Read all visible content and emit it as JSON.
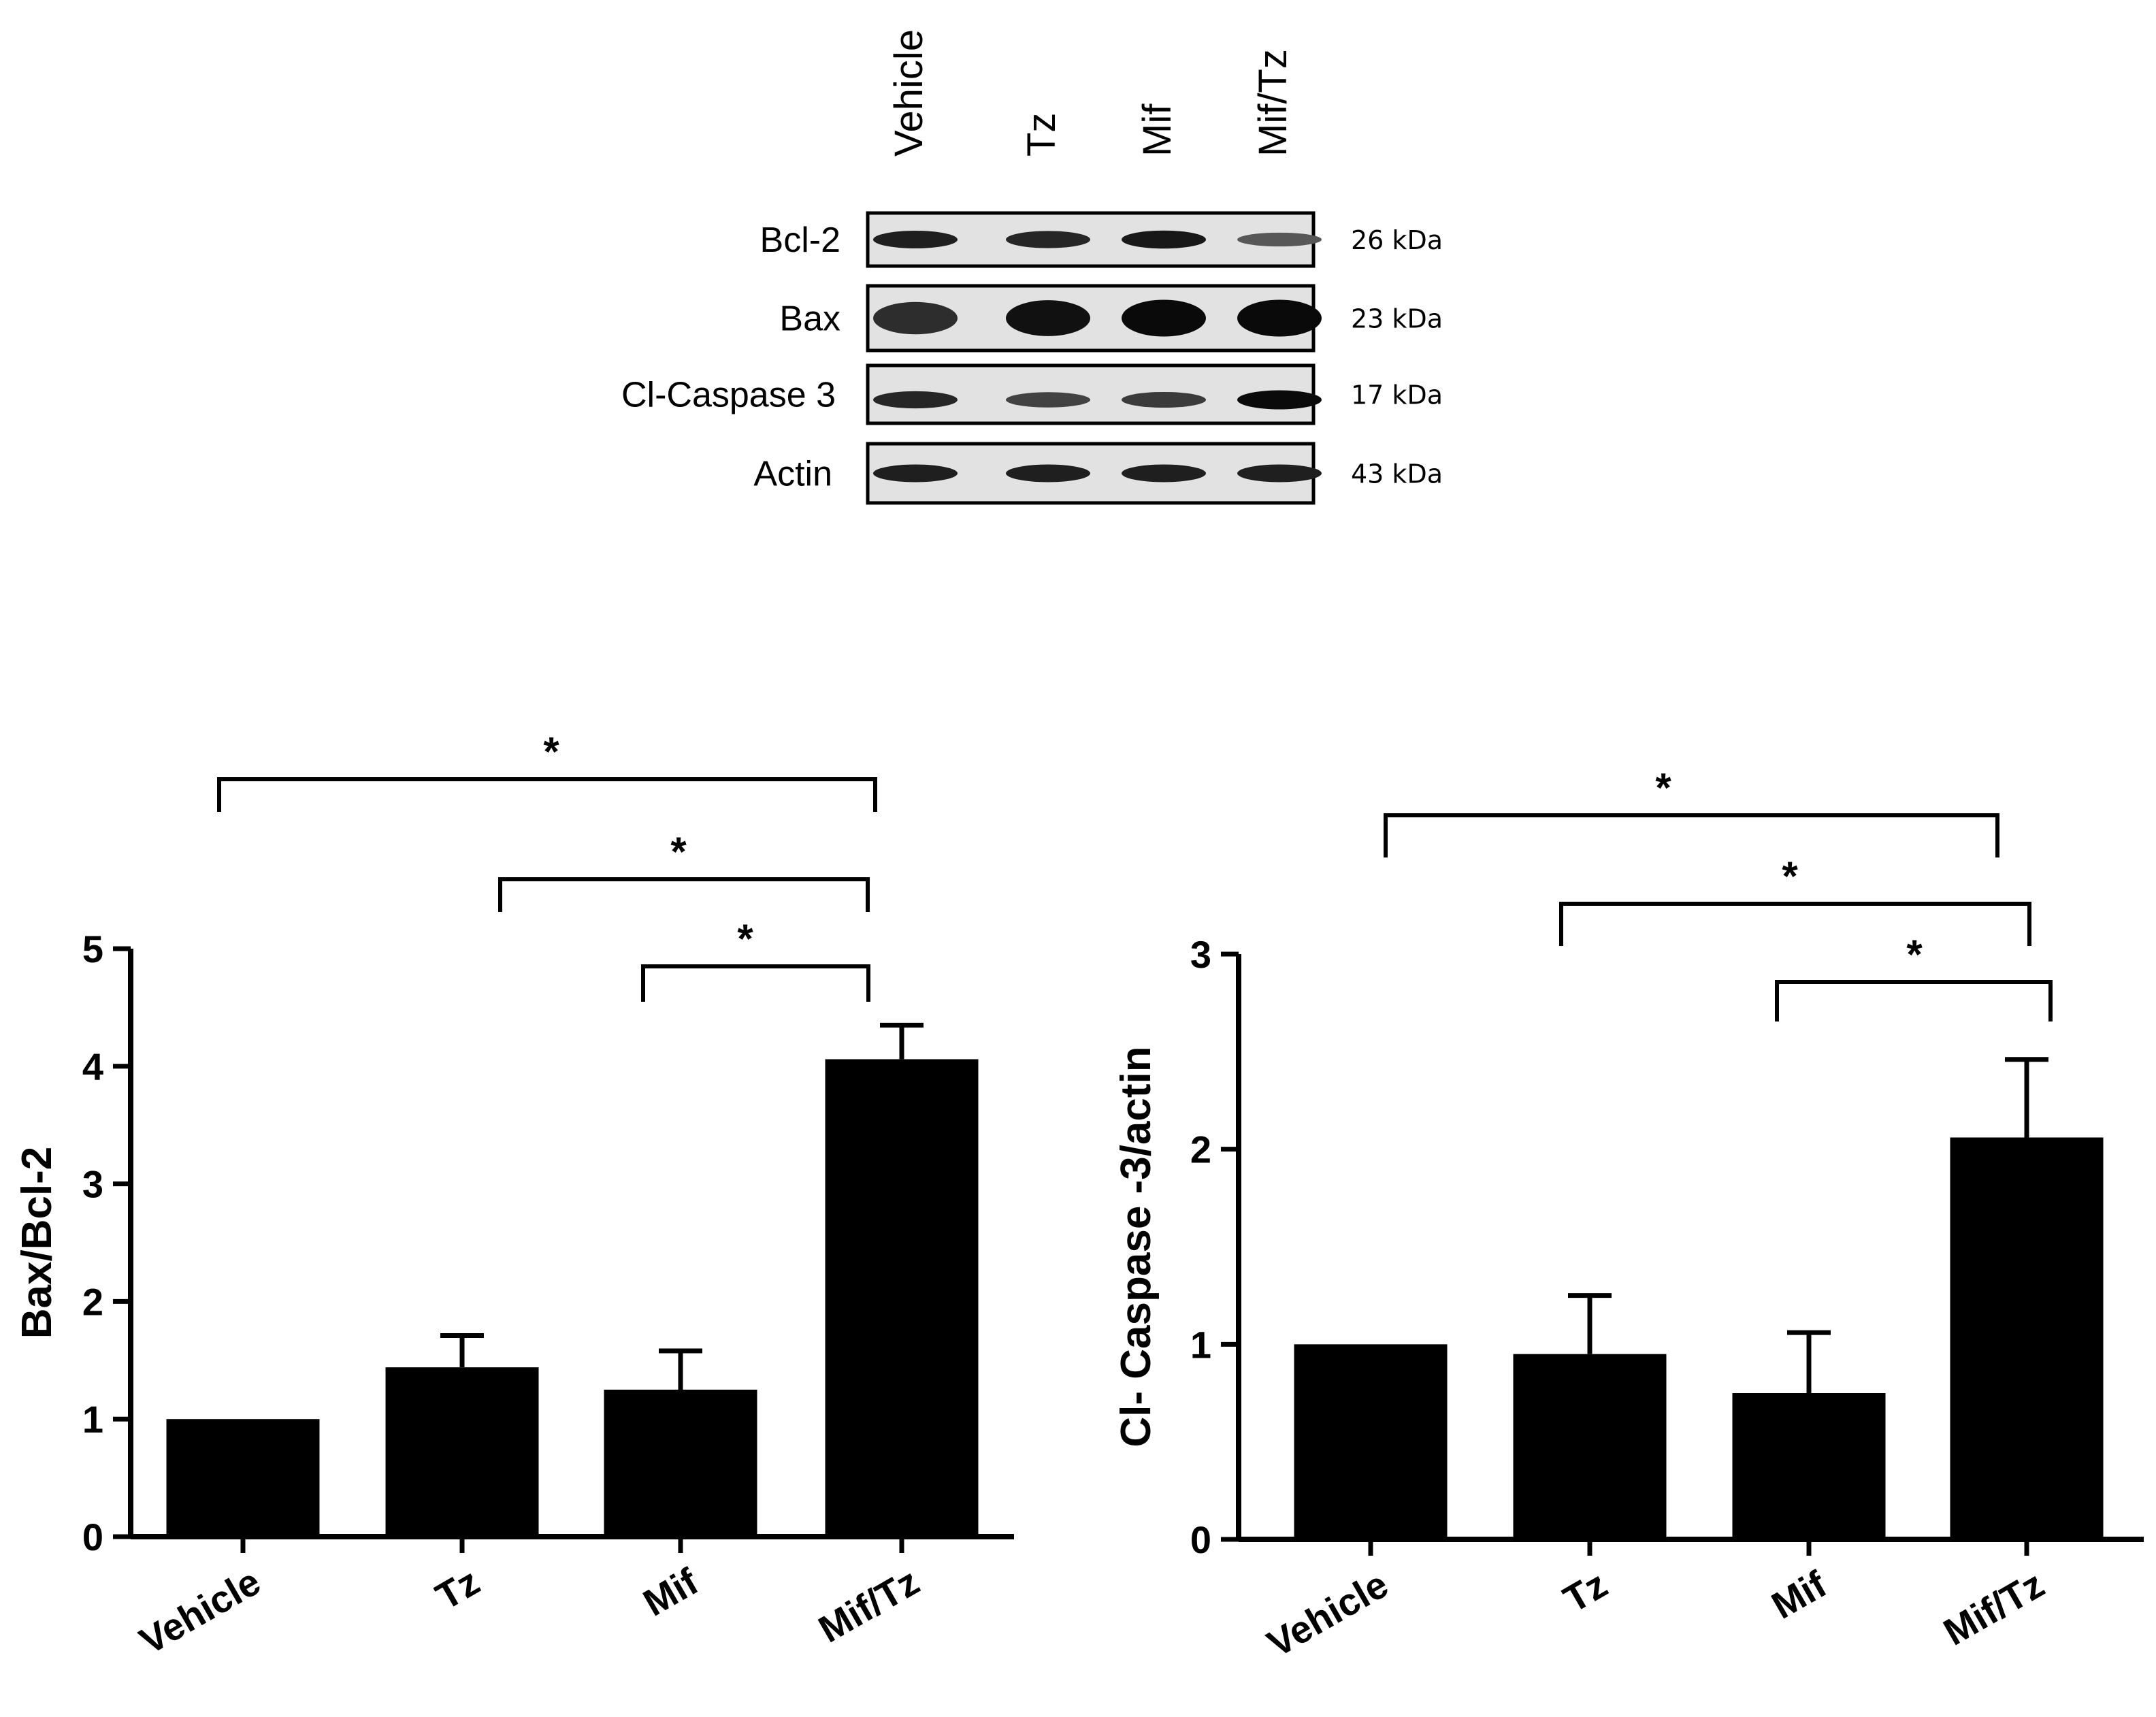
{
  "western_blot": {
    "lanes": [
      "Vehicle",
      "Tz",
      "Mif",
      "Mif/Tz"
    ],
    "rows": [
      {
        "protein": "Bcl-2",
        "kda": "26 kDa",
        "band_intensity": [
          0.85,
          0.8,
          0.9,
          0.45
        ]
      },
      {
        "protein": "Bax",
        "kda": "23 kDa",
        "band_intensity": [
          0.75,
          0.95,
          1.0,
          1.0
        ]
      },
      {
        "protein": "Cl-Caspase 3",
        "kda": "17 kDa",
        "band_intensity": [
          0.8,
          0.6,
          0.65,
          1.0
        ]
      },
      {
        "protein": "Actin",
        "kda": "43 kDa",
        "band_intensity": [
          0.85,
          0.85,
          0.85,
          0.85
        ]
      }
    ]
  },
  "chart_data": [
    {
      "type": "bar",
      "categories": [
        "Vehicle",
        "Tz",
        "Mif",
        "Mif/Tz"
      ],
      "values": [
        1.0,
        1.44,
        1.25,
        4.06
      ],
      "errors": [
        0,
        0.27,
        0.33,
        0.29
      ],
      "ylabel": "Bax/Bcl-2",
      "ylim": [
        0,
        5
      ],
      "yticks": [
        "0",
        "1",
        "2",
        "3",
        "4",
        "5"
      ],
      "significance": [
        {
          "from": "Vehicle",
          "to": "Mif/Tz",
          "label": "*"
        },
        {
          "from": "Tz",
          "to": "Mif/Tz",
          "label": "*"
        },
        {
          "from": "Mif",
          "to": "Mif/Tz",
          "label": "*"
        }
      ]
    },
    {
      "type": "bar",
      "categories": [
        "Vehicle",
        "Tz",
        "Mif",
        "Mif/Tz"
      ],
      "values": [
        1.0,
        0.95,
        0.75,
        2.06
      ],
      "errors": [
        0,
        0.3,
        0.31,
        0.4
      ],
      "ylabel": "Cl- Caspase -3/actin",
      "ylim": [
        0,
        3
      ],
      "yticks": [
        "0",
        "1",
        "2",
        "3"
      ],
      "significance": [
        {
          "from": "Vehicle",
          "to": "Mif/Tz",
          "label": "*"
        },
        {
          "from": "Tz",
          "to": "Mif/Tz",
          "label": "*"
        },
        {
          "from": "Mif",
          "to": "Mif/Tz",
          "label": "*"
        }
      ]
    }
  ]
}
